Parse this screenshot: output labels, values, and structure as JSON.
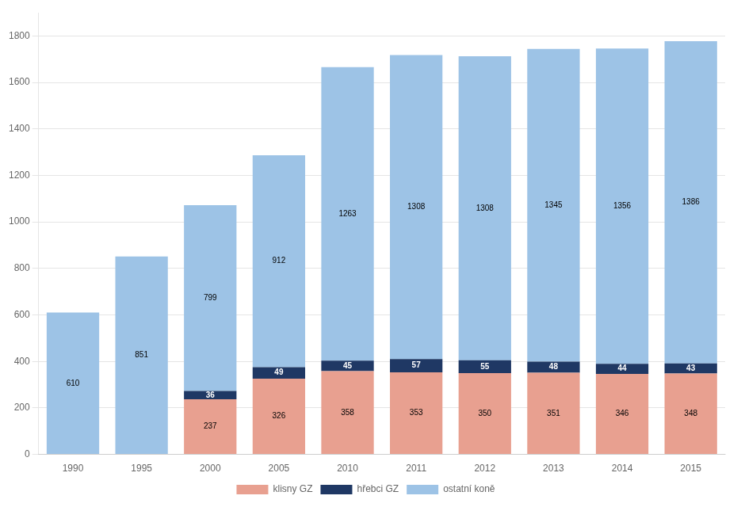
{
  "chart_data": {
    "type": "bar",
    "categories": [
      "1990",
      "1995",
      "2000",
      "2005",
      "2010",
      "2011",
      "2012",
      "2013",
      "2014",
      "2015"
    ],
    "series": [
      {
        "name": "klisny GZ",
        "color": "#E8A090",
        "values": [
          0,
          0,
          237,
          326,
          358,
          353,
          350,
          351,
          346,
          348
        ]
      },
      {
        "name": "hřebci GZ",
        "color": "#1F3864",
        "values": [
          0,
          0,
          36,
          49,
          45,
          57,
          55,
          48,
          44,
          43
        ]
      },
      {
        "name": "ostatní koně",
        "color": "#9DC3E6",
        "values": [
          610,
          851,
          799,
          912,
          1263,
          1308,
          1308,
          1345,
          1356,
          1386
        ]
      }
    ],
    "stacked": true,
    "ylim": [
      0,
      1900
    ],
    "yticks": [
      0,
      200,
      400,
      600,
      800,
      1000,
      1200,
      1400,
      1600,
      1800
    ],
    "grid": true,
    "legend": "bottom",
    "data_labels": true
  }
}
